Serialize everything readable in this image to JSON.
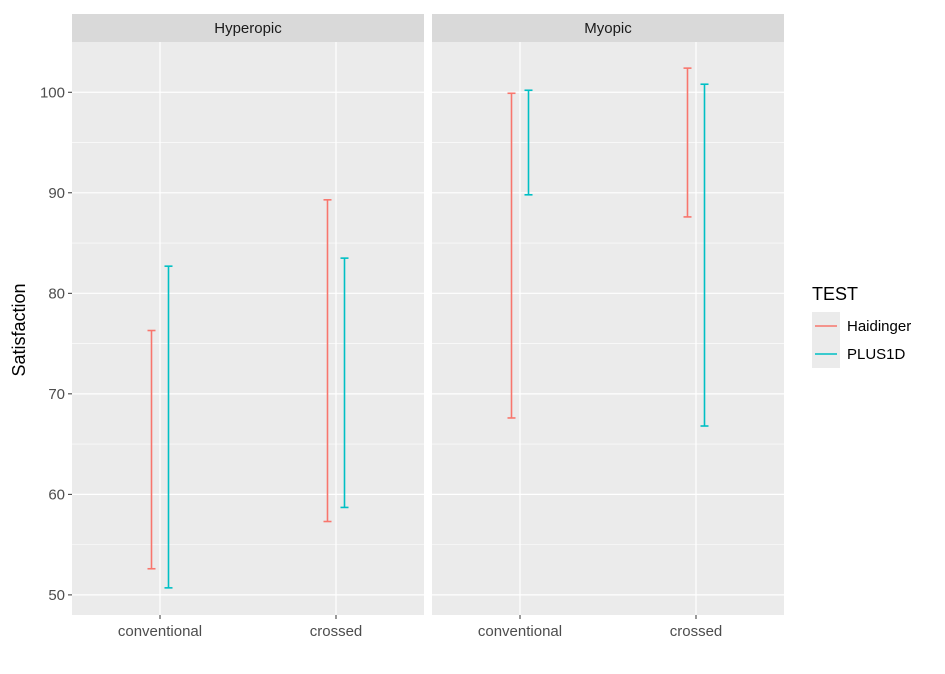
{
  "chart_data": {
    "type": "errorbar",
    "ylabel": "Satisfaction",
    "xlabel": "",
    "ylim": [
      48,
      105
    ],
    "y_ticks": [
      50,
      60,
      70,
      80,
      90,
      100
    ],
    "categories": [
      "conventional",
      "crossed"
    ],
    "facets": [
      "Hyperopic",
      "Myopic"
    ],
    "legend": {
      "title": "TEST",
      "placement": "right",
      "entries": [
        {
          "name": "Haidinger",
          "color": "#F8766D"
        },
        {
          "name": "PLUS1D",
          "color": "#00BFC4"
        }
      ]
    },
    "series": [
      {
        "name": "Haidinger",
        "color": "#F8766D",
        "data": {
          "Hyperopic": {
            "conventional": [
              52.6,
              76.3
            ],
            "crossed": [
              57.3,
              89.3
            ]
          },
          "Myopic": {
            "conventional": [
              67.6,
              99.9
            ],
            "crossed": [
              87.6,
              102.4
            ]
          }
        }
      },
      {
        "name": "PLUS1D",
        "color": "#00BFC4",
        "data": {
          "Hyperopic": {
            "conventional": [
              50.7,
              82.7
            ],
            "crossed": [
              58.7,
              83.5
            ]
          },
          "Myopic": {
            "conventional": [
              89.8,
              100.2
            ],
            "crossed": [
              66.8,
              100.8
            ]
          }
        }
      }
    ],
    "grid": true
  }
}
